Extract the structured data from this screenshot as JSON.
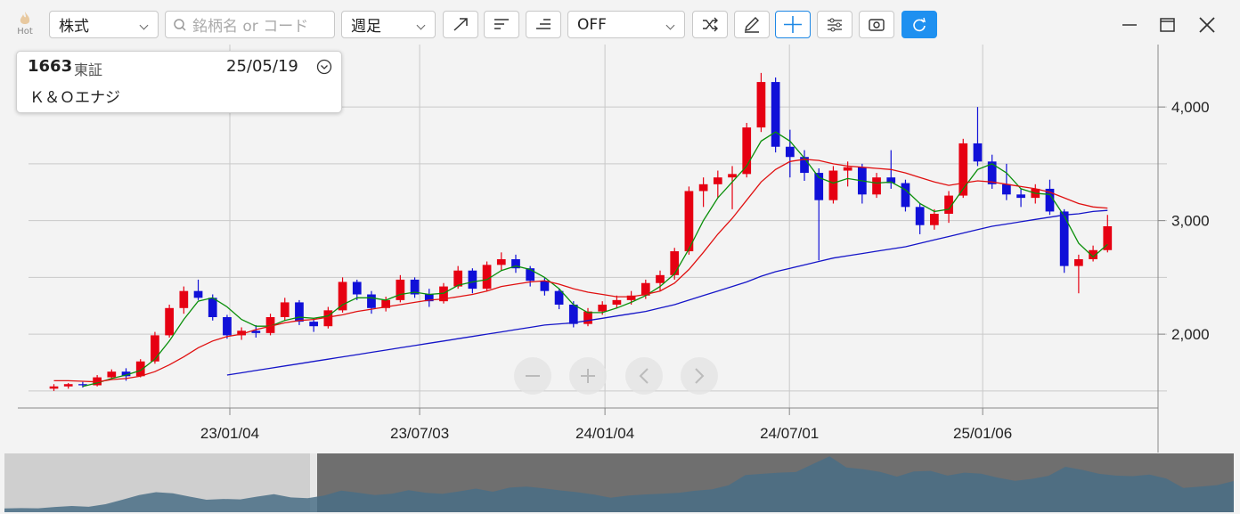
{
  "toolbar": {
    "hot": "Hot",
    "market": "株式",
    "search_placeholder": "銘柄名 or コード",
    "period": "週足",
    "option": "OFF"
  },
  "info": {
    "code": "1663",
    "exchange": "東証",
    "date": "25/05/19",
    "name": "Ｋ＆Ｏエナジ"
  },
  "chart_data": {
    "type": "candlestick",
    "up_color": "#e60012",
    "down_color": "#1010d8",
    "open": [
      1520,
      1540,
      1560,
      1550,
      1620,
      1670,
      1630,
      1760,
      1990,
      2230,
      2380,
      2320,
      2150,
      1990,
      2030,
      2010,
      2150,
      2280,
      2110,
      2070,
      2210,
      2460,
      2350,
      2230,
      2300,
      2480,
      2350,
      2290,
      2420,
      2560,
      2400,
      2610,
      2660,
      2580,
      2470,
      2380,
      2260,
      2090,
      2200,
      2260,
      2300,
      2340,
      2450,
      2520,
      2730,
      3260,
      3320,
      3380,
      3410,
      3820,
      4220,
      3650,
      3560,
      3420,
      3180,
      3440,
      3470,
      3230,
      3380,
      3330,
      3120,
      2960,
      3060,
      3220,
      3680,
      3520,
      3320,
      3230,
      3200,
      3280,
      3080,
      2600,
      2660,
      2740
    ],
    "high": [
      1560,
      1570,
      1580,
      1640,
      1690,
      1700,
      1780,
      2020,
      2260,
      2420,
      2480,
      2350,
      2170,
      2060,
      2080,
      2180,
      2320,
      2300,
      2140,
      2240,
      2500,
      2480,
      2380,
      2330,
      2520,
      2500,
      2400,
      2450,
      2600,
      2580,
      2640,
      2720,
      2700,
      2600,
      2500,
      2400,
      2290,
      2230,
      2290,
      2340,
      2380,
      2480,
      2560,
      2760,
      3300,
      3380,
      3440,
      3480,
      3860,
      4300,
      4260,
      3800,
      3620,
      3460,
      3480,
      3520,
      3500,
      3420,
      3620,
      3360,
      3150,
      3100,
      3260,
      3720,
      4000,
      3580,
      3500,
      3280,
      3320,
      3360,
      3100,
      2700,
      2780,
      3050
    ],
    "low": [
      1500,
      1520,
      1530,
      1540,
      1600,
      1590,
      1620,
      1740,
      1970,
      2180,
      2300,
      2120,
      1960,
      1950,
      1970,
      1990,
      2120,
      2080,
      2020,
      2050,
      2190,
      2300,
      2180,
      2200,
      2280,
      2320,
      2240,
      2270,
      2400,
      2360,
      2380,
      2560,
      2540,
      2420,
      2340,
      2220,
      2060,
      2070,
      2170,
      2230,
      2260,
      2310,
      2380,
      2480,
      2700,
      3120,
      3200,
      3100,
      3380,
      3780,
      3600,
      3380,
      3350,
      2650,
      3150,
      3300,
      3150,
      3200,
      3280,
      3080,
      2880,
      2920,
      2980,
      3200,
      3480,
      3280,
      3180,
      3120,
      3150,
      3050,
      2540,
      2360,
      2640,
      2720
    ],
    "close": [
      1540,
      1560,
      1550,
      1620,
      1670,
      1630,
      1760,
      1990,
      2230,
      2380,
      2320,
      2150,
      1990,
      2030,
      2010,
      2150,
      2280,
      2110,
      2070,
      2210,
      2460,
      2350,
      2230,
      2300,
      2480,
      2350,
      2290,
      2420,
      2560,
      2400,
      2610,
      2660,
      2580,
      2470,
      2380,
      2260,
      2090,
      2200,
      2260,
      2300,
      2340,
      2450,
      2520,
      2730,
      3260,
      3320,
      3380,
      3410,
      3820,
      4220,
      3650,
      3560,
      3420,
      3180,
      3440,
      3470,
      3230,
      3380,
      3330,
      3120,
      2960,
      3060,
      3220,
      3680,
      3520,
      3320,
      3230,
      3200,
      3280,
      3080,
      2600,
      2660,
      2740,
      2950
    ],
    "lines": [
      {
        "color": "#0a8f0a",
        "values": [
          null,
          null,
          1540,
          1570,
          1610,
          1640,
          1680,
          1780,
          1940,
          2130,
          2290,
          2320,
          2240,
          2130,
          2070,
          2070,
          2120,
          2150,
          2140,
          2160,
          2260,
          2320,
          2320,
          2300,
          2350,
          2370,
          2350,
          2360,
          2430,
          2460,
          2480,
          2560,
          2600,
          2570,
          2500,
          2400,
          2260,
          2190,
          2190,
          2230,
          2280,
          2340,
          2420,
          2530,
          2750,
          3000,
          3200,
          3340,
          3480,
          3700,
          3780,
          3700,
          3550,
          3380,
          3330,
          3370,
          3350,
          3330,
          3340,
          3270,
          3150,
          3080,
          3100,
          3280,
          3450,
          3500,
          3420,
          3280,
          3240,
          3230,
          3040,
          2800,
          2680,
          2790
        ]
      },
      {
        "color": "#e01010",
        "values": [
          1590,
          1590,
          1585,
          1580,
          1600,
          1610,
          1630,
          1670,
          1730,
          1800,
          1880,
          1940,
          1980,
          2000,
          2040,
          2070,
          2100,
          2120,
          2130,
          2150,
          2170,
          2200,
          2220,
          2240,
          2260,
          2280,
          2300,
          2310,
          2330,
          2350,
          2380,
          2420,
          2440,
          2460,
          2470,
          2440,
          2400,
          2370,
          2350,
          2330,
          2330,
          2350,
          2380,
          2450,
          2570,
          2720,
          2880,
          3020,
          3180,
          3340,
          3450,
          3520,
          3540,
          3530,
          3500,
          3480,
          3470,
          3460,
          3450,
          3420,
          3380,
          3340,
          3310,
          3330,
          3350,
          3340,
          3320,
          3300,
          3280,
          3250,
          3200,
          3150,
          3120,
          3110
        ]
      },
      {
        "color": "#1515c8",
        "values": [
          null,
          null,
          null,
          null,
          null,
          null,
          null,
          null,
          null,
          null,
          null,
          null,
          1640,
          1660,
          1680,
          1700,
          1720,
          1740,
          1760,
          1780,
          1800,
          1820,
          1840,
          1860,
          1880,
          1900,
          1920,
          1940,
          1960,
          1980,
          2000,
          2020,
          2040,
          2060,
          2080,
          2090,
          2100,
          2120,
          2140,
          2160,
          2180,
          2200,
          2230,
          2260,
          2300,
          2340,
          2380,
          2420,
          2460,
          2510,
          2550,
          2580,
          2610,
          2640,
          2670,
          2690,
          2710,
          2730,
          2750,
          2770,
          2800,
          2830,
          2860,
          2890,
          2920,
          2950,
          2970,
          2990,
          3010,
          3030,
          3050,
          3060,
          3080,
          3090
        ]
      }
    ],
    "xlim": [
      -2.5,
      76.5
    ],
    "xticks": [
      {
        "value": 12.19,
        "label": "23/01/04"
      },
      {
        "value": 25.34,
        "label": "23/07/03"
      },
      {
        "value": 38.18,
        "label": "24/01/04"
      },
      {
        "value": 50.96,
        "label": "24/07/01"
      },
      {
        "value": 64.35,
        "label": "25/01/06"
      }
    ],
    "ylim": [
      1350,
      4550
    ],
    "yticks": [
      {
        "value": 2000,
        "label": "2,000"
      },
      {
        "value": 3000,
        "label": "3,000"
      },
      {
        "value": 4000,
        "label": "4,000"
      }
    ],
    "minor_yticks": [
      1500,
      2500,
      3500
    ],
    "grid": true
  }
}
